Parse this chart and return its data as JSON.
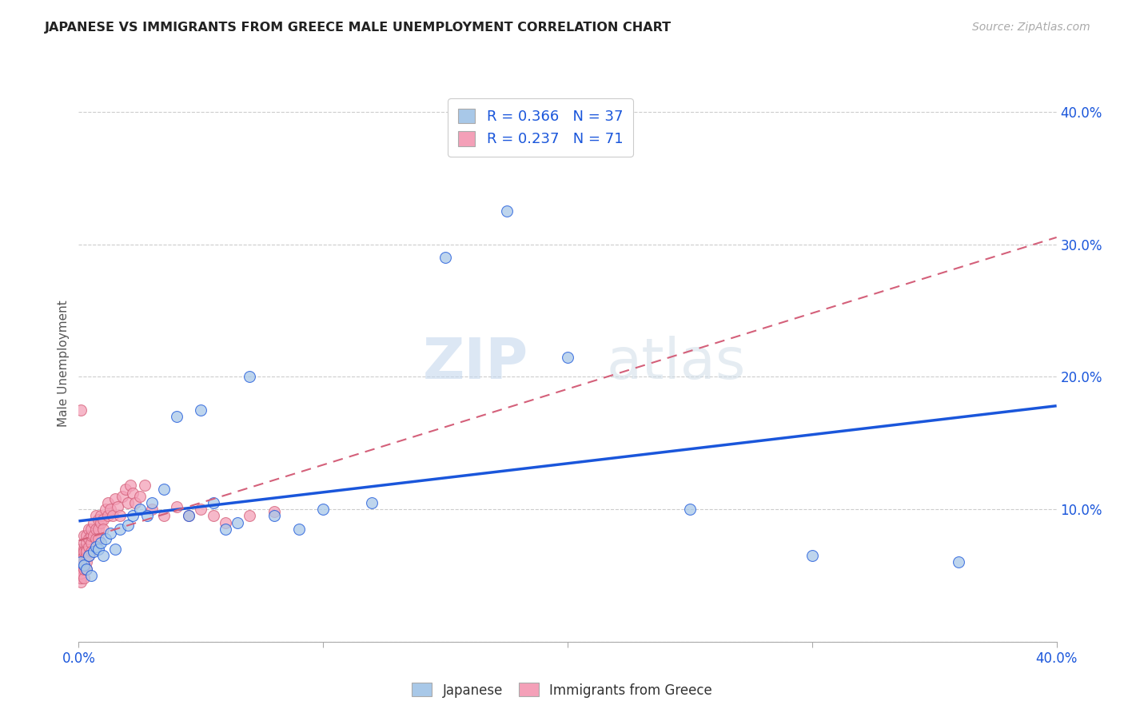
{
  "title": "JAPANESE VS IMMIGRANTS FROM GREECE MALE UNEMPLOYMENT CORRELATION CHART",
  "source": "Source: ZipAtlas.com",
  "ylabel": "Male Unemployment",
  "blue_color": "#a8c8e8",
  "pink_color": "#f4a0b8",
  "line_blue": "#1a56db",
  "line_pink": "#d4607a",
  "watermark_zip": "ZIP",
  "watermark_atlas": "atlas",
  "xlim": [
    0.0,
    0.4
  ],
  "ylim": [
    0.0,
    0.42
  ],
  "japanese_x": [
    0.001,
    0.002,
    0.003,
    0.004,
    0.005,
    0.006,
    0.007,
    0.008,
    0.009,
    0.01,
    0.011,
    0.013,
    0.015,
    0.017,
    0.02,
    0.022,
    0.025,
    0.028,
    0.03,
    0.035,
    0.04,
    0.045,
    0.05,
    0.055,
    0.06,
    0.065,
    0.07,
    0.08,
    0.09,
    0.1,
    0.12,
    0.15,
    0.175,
    0.2,
    0.25,
    0.3,
    0.36
  ],
  "japanese_y": [
    0.06,
    0.058,
    0.055,
    0.065,
    0.05,
    0.068,
    0.072,
    0.07,
    0.075,
    0.065,
    0.078,
    0.082,
    0.07,
    0.085,
    0.088,
    0.095,
    0.1,
    0.095,
    0.105,
    0.115,
    0.17,
    0.095,
    0.175,
    0.105,
    0.085,
    0.09,
    0.2,
    0.095,
    0.085,
    0.1,
    0.105,
    0.29,
    0.325,
    0.215,
    0.1,
    0.065,
    0.06
  ],
  "greece_x": [
    0.001,
    0.001,
    0.001,
    0.001,
    0.001,
    0.001,
    0.001,
    0.001,
    0.001,
    0.001,
    0.002,
    0.002,
    0.002,
    0.002,
    0.002,
    0.002,
    0.002,
    0.002,
    0.003,
    0.003,
    0.003,
    0.003,
    0.003,
    0.003,
    0.003,
    0.004,
    0.004,
    0.004,
    0.004,
    0.005,
    0.005,
    0.005,
    0.005,
    0.006,
    0.006,
    0.007,
    0.007,
    0.007,
    0.008,
    0.008,
    0.008,
    0.009,
    0.009,
    0.01,
    0.01,
    0.011,
    0.012,
    0.012,
    0.013,
    0.014,
    0.015,
    0.016,
    0.017,
    0.018,
    0.019,
    0.02,
    0.021,
    0.022,
    0.023,
    0.025,
    0.027,
    0.03,
    0.035,
    0.04,
    0.045,
    0.05,
    0.055,
    0.06,
    0.07,
    0.08,
    0.001
  ],
  "greece_y": [
    0.045,
    0.05,
    0.055,
    0.06,
    0.065,
    0.07,
    0.048,
    0.052,
    0.058,
    0.062,
    0.06,
    0.065,
    0.07,
    0.075,
    0.08,
    0.048,
    0.055,
    0.068,
    0.06,
    0.065,
    0.07,
    0.075,
    0.08,
    0.055,
    0.068,
    0.072,
    0.078,
    0.065,
    0.085,
    0.075,
    0.08,
    0.085,
    0.068,
    0.08,
    0.09,
    0.085,
    0.078,
    0.095,
    0.085,
    0.092,
    0.078,
    0.09,
    0.095,
    0.092,
    0.085,
    0.1,
    0.095,
    0.105,
    0.1,
    0.095,
    0.108,
    0.102,
    0.095,
    0.11,
    0.115,
    0.105,
    0.118,
    0.112,
    0.105,
    0.11,
    0.118,
    0.1,
    0.095,
    0.102,
    0.095,
    0.1,
    0.095,
    0.09,
    0.095,
    0.098,
    0.175
  ]
}
